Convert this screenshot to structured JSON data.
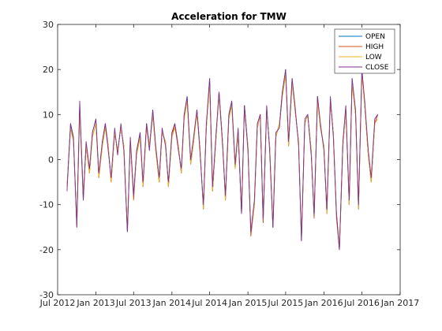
{
  "chart_data": {
    "type": "line",
    "title": "Acceleration for TMW",
    "xlabel": "",
    "ylabel": "",
    "ylim": [
      -30,
      30
    ],
    "yticks": [
      -30,
      -20,
      -10,
      0,
      10,
      20,
      30
    ],
    "x_axis_kind": "date",
    "xlim": [
      "2012-07-01",
      "2017-01-01"
    ],
    "xticks": [
      {
        "date": "2012-07-01",
        "label": "Jul 2012"
      },
      {
        "date": "2013-01-01",
        "label": "Jan 2013"
      },
      {
        "date": "2013-07-01",
        "label": "Jul 2013"
      },
      {
        "date": "2014-01-01",
        "label": "Jan 2014"
      },
      {
        "date": "2014-07-01",
        "label": "Jul 2014"
      },
      {
        "date": "2015-01-01",
        "label": "Jan 2015"
      },
      {
        "date": "2015-07-01",
        "label": "Jul 2015"
      },
      {
        "date": "2016-01-01",
        "label": "Jan 2016"
      },
      {
        "date": "2016-07-01",
        "label": "Jul 2016"
      },
      {
        "date": "2017-01-01",
        "label": "Jan 2017"
      }
    ],
    "grid": false,
    "legend_position": "top-right",
    "x": [
      "2012-08-15",
      "2012-09-01",
      "2012-09-15",
      "2012-10-01",
      "2012-10-15",
      "2012-11-01",
      "2012-11-15",
      "2012-12-01",
      "2012-12-15",
      "2013-01-01",
      "2013-01-15",
      "2013-02-01",
      "2013-02-15",
      "2013-03-01",
      "2013-03-15",
      "2013-04-01",
      "2013-04-15",
      "2013-05-01",
      "2013-05-15",
      "2013-06-01",
      "2013-06-15",
      "2013-07-01",
      "2013-07-15",
      "2013-08-01",
      "2013-08-15",
      "2013-09-01",
      "2013-09-15",
      "2013-10-01",
      "2013-10-15",
      "2013-11-01",
      "2013-11-15",
      "2013-12-01",
      "2013-12-15",
      "2014-01-01",
      "2014-01-15",
      "2014-02-01",
      "2014-02-15",
      "2014-03-01",
      "2014-03-15",
      "2014-04-01",
      "2014-04-15",
      "2014-05-01",
      "2014-05-15",
      "2014-06-01",
      "2014-06-15",
      "2014-07-01",
      "2014-07-15",
      "2014-08-01",
      "2014-08-15",
      "2014-09-01",
      "2014-09-15",
      "2014-10-01",
      "2014-10-15",
      "2014-11-01",
      "2014-11-15",
      "2014-12-01",
      "2014-12-15",
      "2015-01-01",
      "2015-01-15",
      "2015-02-01",
      "2015-02-15",
      "2015-03-01",
      "2015-03-15",
      "2015-04-01",
      "2015-04-15",
      "2015-05-01",
      "2015-05-15",
      "2015-06-01",
      "2015-06-15",
      "2015-07-01",
      "2015-07-15",
      "2015-08-01",
      "2015-08-15",
      "2015-09-01",
      "2015-09-15",
      "2015-10-01",
      "2015-10-15",
      "2015-11-01",
      "2015-11-15",
      "2015-12-01",
      "2015-12-15",
      "2016-01-01",
      "2016-01-15",
      "2016-02-01",
      "2016-02-15",
      "2016-03-01",
      "2016-03-15",
      "2016-04-01",
      "2016-04-15",
      "2016-05-01",
      "2016-05-15",
      "2016-06-01",
      "2016-06-15",
      "2016-07-01",
      "2016-07-15",
      "2016-08-01",
      "2016-08-15",
      "2016-09-01",
      "2016-09-15"
    ],
    "series": [
      {
        "name": "OPEN",
        "color": "#0072BD",
        "values": [
          -6,
          8,
          4,
          -14,
          12,
          -8,
          3,
          -3,
          6,
          9,
          -4,
          4,
          8,
          3,
          -5,
          6,
          2,
          7,
          3,
          -16,
          4,
          -8,
          1,
          6,
          -6,
          8,
          3,
          11,
          2,
          -5,
          6,
          4,
          -6,
          5,
          8,
          3,
          -3,
          10,
          14,
          -1,
          4,
          11,
          3,
          -11,
          7,
          18,
          -7,
          5,
          15,
          4,
          -9,
          9,
          13,
          -2,
          6,
          -12,
          12,
          3,
          -16,
          -10,
          7,
          10,
          -14,
          11,
          3,
          -15,
          5,
          8,
          15,
          20,
          3,
          18,
          11,
          4,
          -18,
          8,
          10,
          2,
          -13,
          14,
          7,
          3,
          -12,
          13,
          6,
          -12,
          -20,
          3,
          11,
          -10,
          18,
          10,
          -11,
          20,
          12,
          1,
          -5,
          8,
          10
        ]
      },
      {
        "name": "HIGH",
        "color": "#D95319",
        "values": [
          -6,
          7,
          4,
          -15,
          11,
          -9,
          3,
          -3,
          5,
          8,
          -4,
          3,
          8,
          3,
          -5,
          6,
          2,
          7,
          3,
          -16,
          4,
          -9,
          1,
          5,
          -6,
          8,
          3,
          10,
          2,
          -5,
          6,
          4,
          -6,
          5,
          8,
          3,
          -3,
          10,
          13,
          -1,
          4,
          11,
          3,
          -11,
          7,
          17,
          -7,
          5,
          15,
          4,
          -9,
          9,
          12,
          -2,
          6,
          -12,
          12,
          3,
          -17,
          -10,
          7,
          10,
          -14,
          11,
          3,
          -15,
          5,
          8,
          14,
          19,
          3,
          17,
          11,
          4,
          -18,
          8,
          10,
          2,
          -13,
          14,
          7,
          3,
          -12,
          13,
          6,
          -13,
          -20,
          3,
          11,
          -10,
          17,
          10,
          -11,
          19,
          12,
          1,
          -5,
          8,
          10
        ]
      },
      {
        "name": "LOW",
        "color": "#EDB120",
        "values": [
          -6,
          7,
          4,
          -14,
          11,
          -8,
          3,
          -3,
          5,
          8,
          -4,
          3,
          7,
          3,
          -5,
          6,
          2,
          7,
          3,
          -15,
          4,
          -8,
          1,
          5,
          -6,
          7,
          3,
          10,
          2,
          -5,
          6,
          4,
          -6,
          5,
          7,
          3,
          -3,
          9,
          13,
          -1,
          4,
          10,
          3,
          -11,
          7,
          17,
          -7,
          5,
          14,
          4,
          -9,
          9,
          12,
          -2,
          6,
          -11,
          11,
          3,
          -16,
          -10,
          7,
          10,
          -13,
          11,
          3,
          -14,
          5,
          8,
          14,
          19,
          3,
          17,
          11,
          4,
          -17,
          8,
          10,
          2,
          -12,
          13,
          7,
          3,
          -12,
          13,
          6,
          -12,
          -19,
          3,
          11,
          -10,
          17,
          10,
          -11,
          19,
          12,
          1,
          -5,
          8,
          9
        ]
      },
      {
        "name": "CLOSE",
        "color": "#7E2F8E",
        "values": [
          -7,
          8,
          5,
          -15,
          13,
          -9,
          4,
          -2,
          6,
          9,
          -3,
          4,
          8,
          2,
          -4,
          7,
          1,
          8,
          2,
          -16,
          5,
          -8,
          2,
          6,
          -5,
          8,
          2,
          11,
          3,
          -4,
          7,
          3,
          -5,
          6,
          8,
          2,
          -2,
          10,
          14,
          0,
          5,
          11,
          2,
          -10,
          8,
          18,
          -6,
          6,
          15,
          3,
          -8,
          10,
          13,
          -1,
          7,
          -12,
          12,
          2,
          -16,
          -9,
          8,
          10,
          -13,
          12,
          2,
          -15,
          6,
          7,
          15,
          20,
          4,
          18,
          12,
          3,
          -18,
          9,
          10,
          1,
          -12,
          14,
          8,
          2,
          -11,
          14,
          5,
          -12,
          -20,
          4,
          12,
          -9,
          18,
          11,
          -10,
          20,
          13,
          2,
          -4,
          9,
          10
        ]
      }
    ]
  }
}
